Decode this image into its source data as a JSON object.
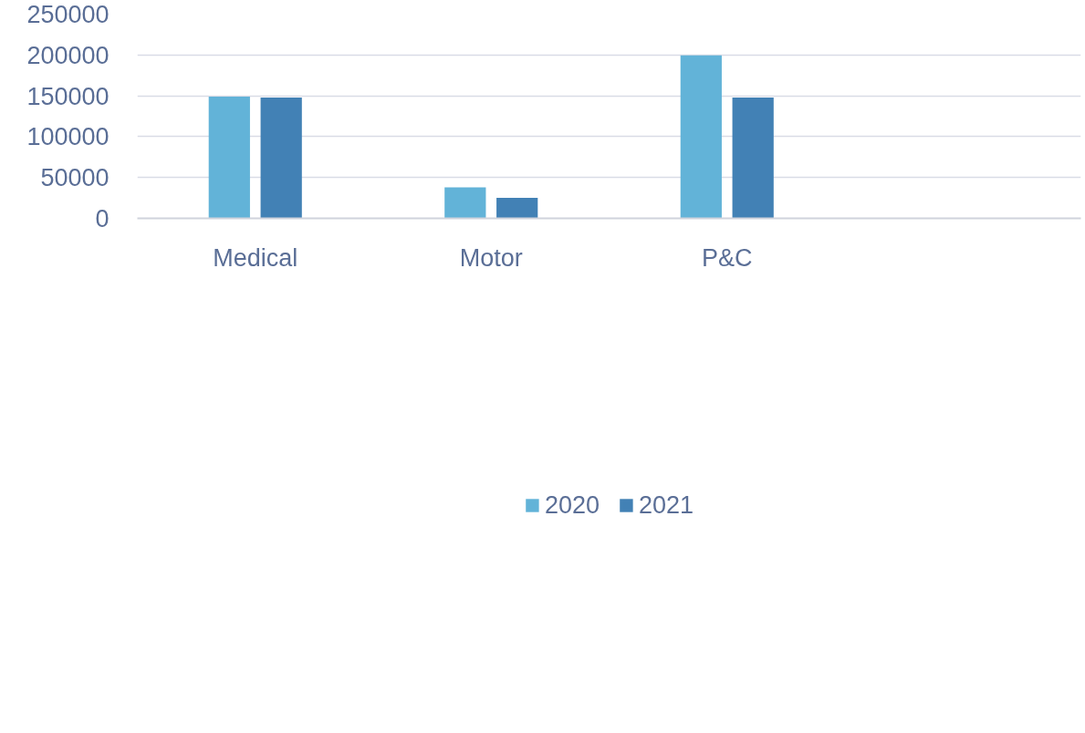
{
  "chart_data": {
    "type": "bar",
    "categories": [
      "Medical",
      "Motor",
      "P&C",
      null
    ],
    "series": [
      {
        "name": "2020",
        "color": "#62b3d8",
        "values": [
          149000,
          38000,
          199500,
          null
        ]
      },
      {
        "name": "2021",
        "color": "#4281b5",
        "values": [
          148000,
          25000,
          148000,
          null
        ]
      }
    ],
    "ylim": [
      0,
      250000
    ],
    "yticks": [
      0,
      50000,
      100000,
      150000,
      200000,
      250000
    ],
    "grid": "y",
    "legend": "bottom"
  }
}
